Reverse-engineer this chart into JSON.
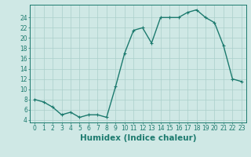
{
  "x": [
    0,
    1,
    2,
    3,
    4,
    5,
    6,
    7,
    8,
    9,
    10,
    11,
    12,
    13,
    14,
    15,
    16,
    17,
    18,
    19,
    20,
    21,
    22,
    23
  ],
  "y": [
    8,
    7.5,
    6.5,
    5,
    5.5,
    4.5,
    5,
    5,
    4.5,
    10.5,
    17,
    21.5,
    22,
    19,
    24,
    24,
    24,
    25,
    25.5,
    24,
    23,
    18.5,
    12,
    11.5
  ],
  "line_color": "#1c7a6e",
  "marker_color": "#1c7a6e",
  "bg_color": "#cfe8e5",
  "grid_color": "#aacfcb",
  "xlabel": "Humidex (Indice chaleur)",
  "xlim": [
    -0.5,
    23.5
  ],
  "ylim": [
    3.5,
    26.5
  ],
  "yticks": [
    4,
    6,
    8,
    10,
    12,
    14,
    16,
    18,
    20,
    22,
    24
  ],
  "xticks": [
    0,
    1,
    2,
    3,
    4,
    5,
    6,
    7,
    8,
    9,
    10,
    11,
    12,
    13,
    14,
    15,
    16,
    17,
    18,
    19,
    20,
    21,
    22,
    23
  ],
  "tick_fontsize": 5.5,
  "xlabel_fontsize": 7.5,
  "axis_color": "#1c7a6e",
  "linewidth": 1.0,
  "markersize": 2.2
}
